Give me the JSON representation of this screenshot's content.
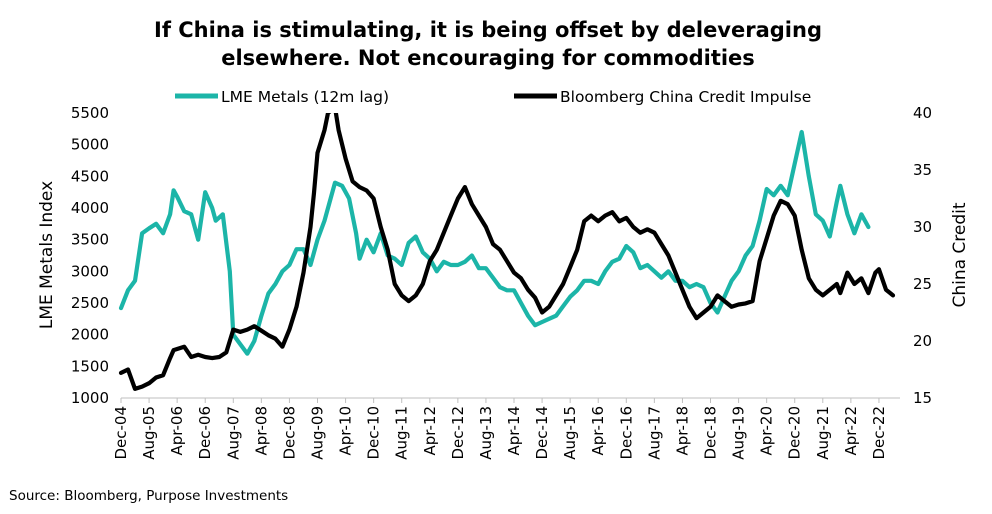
{
  "chart_data": {
    "type": "line",
    "title": [
      "If China is stimulating, it is being offset by deleveraging",
      "elsewhere. Not encouraging for commodities"
    ],
    "ylabel_left": "LME Metals Index",
    "ylabel_right": "China Credit",
    "ylim_left": [
      1000,
      5500
    ],
    "ylim_right": [
      15,
      40
    ],
    "yticks_left": [
      "1000",
      "1500",
      "2000",
      "2500",
      "3000",
      "3500",
      "4000",
      "4500",
      "5000",
      "5500"
    ],
    "yticks_right": [
      "15",
      "20",
      "25",
      "30",
      "35",
      "40"
    ],
    "x_tick_labels": [
      "Dec-04",
      "Aug-05",
      "Apr-06",
      "Dec-06",
      "Aug-07",
      "Apr-08",
      "Dec-08",
      "Aug-09",
      "Apr-10",
      "Dec-10",
      "Aug-11",
      "Apr-12",
      "Dec-12",
      "Aug-13",
      "Apr-14",
      "Dec-14",
      "Aug-15",
      "Apr-16",
      "Dec-16",
      "Aug-17",
      "Apr-18",
      "Dec-18",
      "Aug-19",
      "Apr-20",
      "Dec-20",
      "Aug-21",
      "Apr-22",
      "Dec-22"
    ],
    "legend_position": "top",
    "source": "Source: Bloomberg, Purpose Investments",
    "series": [
      {
        "name": "LME Metals (12m lag)",
        "color": "#1cb5a8",
        "axis": "left",
        "points": [
          [
            "Dec-04",
            2420
          ],
          [
            "Feb-05",
            2700
          ],
          [
            "Apr-05",
            2850
          ],
          [
            "Jun-05",
            3600
          ],
          [
            "Aug-05",
            3680
          ],
          [
            "Oct-05",
            3750
          ],
          [
            "Dec-05",
            3600
          ],
          [
            "Feb-06",
            3900
          ],
          [
            "Mar-06",
            4280
          ],
          [
            "Apr-06",
            4180
          ],
          [
            "Jun-06",
            3950
          ],
          [
            "Aug-06",
            3900
          ],
          [
            "Oct-06",
            3500
          ],
          [
            "Dec-06",
            4250
          ],
          [
            "Feb-07",
            4000
          ],
          [
            "Mar-07",
            3800
          ],
          [
            "May-07",
            3900
          ],
          [
            "Jul-07",
            3000
          ],
          [
            "Aug-07",
            2000
          ],
          [
            "Oct-07",
            1850
          ],
          [
            "Dec-07",
            1700
          ],
          [
            "Feb-08",
            1900
          ],
          [
            "Apr-08",
            2300
          ],
          [
            "Jun-08",
            2650
          ],
          [
            "Aug-08",
            2800
          ],
          [
            "Oct-08",
            3000
          ],
          [
            "Dec-08",
            3100
          ],
          [
            "Feb-09",
            3350
          ],
          [
            "Apr-09",
            3350
          ],
          [
            "Jun-09",
            3100
          ],
          [
            "Aug-09",
            3500
          ],
          [
            "Oct-09",
            3800
          ],
          [
            "Dec-09",
            4200
          ],
          [
            "Jan-10",
            4400
          ],
          [
            "Mar-10",
            4350
          ],
          [
            "May-10",
            4150
          ],
          [
            "Jul-10",
            3600
          ],
          [
            "Aug-10",
            3200
          ],
          [
            "Oct-10",
            3500
          ],
          [
            "Dec-10",
            3300
          ],
          [
            "Feb-11",
            3600
          ],
          [
            "Apr-11",
            3250
          ],
          [
            "Jun-11",
            3200
          ],
          [
            "Aug-11",
            3100
          ],
          [
            "Oct-11",
            3450
          ],
          [
            "Dec-11",
            3550
          ],
          [
            "Feb-12",
            3300
          ],
          [
            "Apr-12",
            3200
          ],
          [
            "Jun-12",
            3000
          ],
          [
            "Aug-12",
            3150
          ],
          [
            "Oct-12",
            3100
          ],
          [
            "Dec-12",
            3100
          ],
          [
            "Feb-13",
            3150
          ],
          [
            "Apr-13",
            3250
          ],
          [
            "Jun-13",
            3050
          ],
          [
            "Aug-13",
            3050
          ],
          [
            "Oct-13",
            2900
          ],
          [
            "Dec-13",
            2750
          ],
          [
            "Feb-14",
            2700
          ],
          [
            "Apr-14",
            2700
          ],
          [
            "Jun-14",
            2500
          ],
          [
            "Aug-14",
            2300
          ],
          [
            "Oct-14",
            2150
          ],
          [
            "Dec-14",
            2200
          ],
          [
            "Feb-15",
            2250
          ],
          [
            "Apr-15",
            2300
          ],
          [
            "Jun-15",
            2450
          ],
          [
            "Aug-15",
            2600
          ],
          [
            "Oct-15",
            2700
          ],
          [
            "Dec-15",
            2850
          ],
          [
            "Feb-16",
            2850
          ],
          [
            "Apr-16",
            2800
          ],
          [
            "Jun-16",
            3000
          ],
          [
            "Aug-16",
            3150
          ],
          [
            "Oct-16",
            3200
          ],
          [
            "Dec-16",
            3400
          ],
          [
            "Feb-17",
            3300
          ],
          [
            "Apr-17",
            3050
          ],
          [
            "Jun-17",
            3100
          ],
          [
            "Aug-17",
            3000
          ],
          [
            "Oct-17",
            2900
          ],
          [
            "Dec-17",
            3000
          ],
          [
            "Feb-18",
            2850
          ],
          [
            "Apr-18",
            2850
          ],
          [
            "Jun-18",
            2750
          ],
          [
            "Aug-18",
            2800
          ],
          [
            "Oct-18",
            2750
          ],
          [
            "Dec-18",
            2500
          ],
          [
            "Feb-19",
            2350
          ],
          [
            "Apr-19",
            2600
          ],
          [
            "Jun-19",
            2850
          ],
          [
            "Aug-19",
            3000
          ],
          [
            "Oct-19",
            3250
          ],
          [
            "Dec-19",
            3400
          ],
          [
            "Feb-20",
            3800
          ],
          [
            "Apr-20",
            4300
          ],
          [
            "Jun-20",
            4200
          ],
          [
            "Aug-20",
            4350
          ],
          [
            "Oct-20",
            4200
          ],
          [
            "Dec-20",
            4700
          ],
          [
            "Feb-21",
            5200
          ],
          [
            "Apr-21",
            4500
          ],
          [
            "Jun-21",
            3900
          ],
          [
            "Aug-21",
            3800
          ],
          [
            "Oct-21",
            3550
          ],
          [
            "Dec-21",
            4100
          ],
          [
            "Jan-22",
            4350
          ],
          [
            "Mar-22",
            3900
          ],
          [
            "May-22",
            3600
          ],
          [
            "Jul-22",
            3900
          ],
          [
            "Sep-22",
            3700
          ]
        ]
      },
      {
        "name": "Bloomberg China Credit Impulse",
        "color": "#000000",
        "axis": "right",
        "points": [
          [
            "Dec-04",
            17.2
          ],
          [
            "Feb-05",
            17.5
          ],
          [
            "Apr-05",
            15.8
          ],
          [
            "Jun-05",
            16.0
          ],
          [
            "Aug-05",
            16.3
          ],
          [
            "Oct-05",
            16.8
          ],
          [
            "Dec-05",
            17.0
          ],
          [
            "Feb-06",
            18.5
          ],
          [
            "Mar-06",
            19.2
          ],
          [
            "Apr-06",
            19.3
          ],
          [
            "Jun-06",
            19.5
          ],
          [
            "Aug-06",
            18.6
          ],
          [
            "Oct-06",
            18.8
          ],
          [
            "Dec-06",
            18.6
          ],
          [
            "Feb-07",
            18.5
          ],
          [
            "Apr-07",
            18.6
          ],
          [
            "Jun-07",
            19.0
          ],
          [
            "Aug-07",
            21.0
          ],
          [
            "Oct-07",
            20.8
          ],
          [
            "Dec-07",
            21.0
          ],
          [
            "Feb-08",
            21.3
          ],
          [
            "Apr-08",
            20.9
          ],
          [
            "Jun-08",
            20.5
          ],
          [
            "Aug-08",
            20.2
          ],
          [
            "Oct-08",
            19.5
          ],
          [
            "Dec-08",
            21.0
          ],
          [
            "Feb-09",
            23.0
          ],
          [
            "Apr-09",
            26.0
          ],
          [
            "Jun-09",
            30.0
          ],
          [
            "Jul-09",
            33.0
          ],
          [
            "Aug-09",
            36.5
          ],
          [
            "Oct-09",
            38.5
          ],
          [
            "Nov-09",
            40.0
          ],
          [
            "Jan-10",
            40.5
          ],
          [
            "Feb-10",
            38.5
          ],
          [
            "Apr-10",
            36.0
          ],
          [
            "Jun-10",
            34.0
          ],
          [
            "Aug-10",
            33.5
          ],
          [
            "Oct-10",
            33.2
          ],
          [
            "Dec-10",
            32.5
          ],
          [
            "Feb-11",
            30.0
          ],
          [
            "Apr-11",
            28.0
          ],
          [
            "Jun-11",
            25.0
          ],
          [
            "Aug-11",
            24.0
          ],
          [
            "Oct-11",
            23.5
          ],
          [
            "Dec-11",
            24.0
          ],
          [
            "Feb-12",
            25.0
          ],
          [
            "Apr-12",
            27.0
          ],
          [
            "Jun-12",
            28.0
          ],
          [
            "Aug-12",
            29.5
          ],
          [
            "Oct-12",
            31.0
          ],
          [
            "Dec-12",
            32.5
          ],
          [
            "Feb-13",
            33.5
          ],
          [
            "Apr-13",
            32.0
          ],
          [
            "Jun-13",
            31.0
          ],
          [
            "Aug-13",
            30.0
          ],
          [
            "Oct-13",
            28.5
          ],
          [
            "Dec-13",
            28.0
          ],
          [
            "Feb-14",
            27.0
          ],
          [
            "Apr-14",
            26.0
          ],
          [
            "Jun-14",
            25.5
          ],
          [
            "Aug-14",
            24.5
          ],
          [
            "Oct-14",
            23.8
          ],
          [
            "Dec-14",
            22.5
          ],
          [
            "Feb-15",
            23.0
          ],
          [
            "Apr-15",
            24.0
          ],
          [
            "Jun-15",
            25.0
          ],
          [
            "Aug-15",
            26.5
          ],
          [
            "Oct-15",
            28.0
          ],
          [
            "Dec-15",
            30.5
          ],
          [
            "Feb-16",
            31.0
          ],
          [
            "Apr-16",
            30.5
          ],
          [
            "Jun-16",
            31.0
          ],
          [
            "Aug-16",
            31.3
          ],
          [
            "Oct-16",
            30.5
          ],
          [
            "Dec-16",
            30.8
          ],
          [
            "Feb-17",
            30.0
          ],
          [
            "Apr-17",
            29.5
          ],
          [
            "Jun-17",
            29.8
          ],
          [
            "Aug-17",
            29.5
          ],
          [
            "Oct-17",
            28.5
          ],
          [
            "Dec-17",
            27.5
          ],
          [
            "Feb-18",
            26.0
          ],
          [
            "Apr-18",
            24.5
          ],
          [
            "Jun-18",
            23.0
          ],
          [
            "Aug-18",
            22.0
          ],
          [
            "Oct-18",
            22.5
          ],
          [
            "Dec-18",
            23.0
          ],
          [
            "Feb-19",
            24.0
          ],
          [
            "Apr-19",
            23.5
          ],
          [
            "Jun-19",
            23.0
          ],
          [
            "Aug-19",
            23.2
          ],
          [
            "Oct-19",
            23.3
          ],
          [
            "Dec-19",
            23.5
          ],
          [
            "Feb-20",
            27.0
          ],
          [
            "Apr-20",
            29.0
          ],
          [
            "Jun-20",
            31.0
          ],
          [
            "Aug-20",
            32.3
          ],
          [
            "Oct-20",
            32.0
          ],
          [
            "Dec-20",
            31.0
          ],
          [
            "Feb-21",
            28.0
          ],
          [
            "Apr-21",
            25.5
          ],
          [
            "Jun-21",
            24.5
          ],
          [
            "Aug-21",
            24.0
          ],
          [
            "Oct-21",
            24.5
          ],
          [
            "Dec-21",
            25.0
          ],
          [
            "Jan-22",
            24.2
          ],
          [
            "Mar-22",
            26.0
          ],
          [
            "May-22",
            25.0
          ],
          [
            "Jul-22",
            25.5
          ],
          [
            "Sep-22",
            24.2
          ],
          [
            "Nov-22",
            26.0
          ],
          [
            "Dec-22",
            26.3
          ],
          [
            "Feb-23",
            24.5
          ],
          [
            "Apr-23",
            24.0
          ]
        ]
      }
    ]
  }
}
